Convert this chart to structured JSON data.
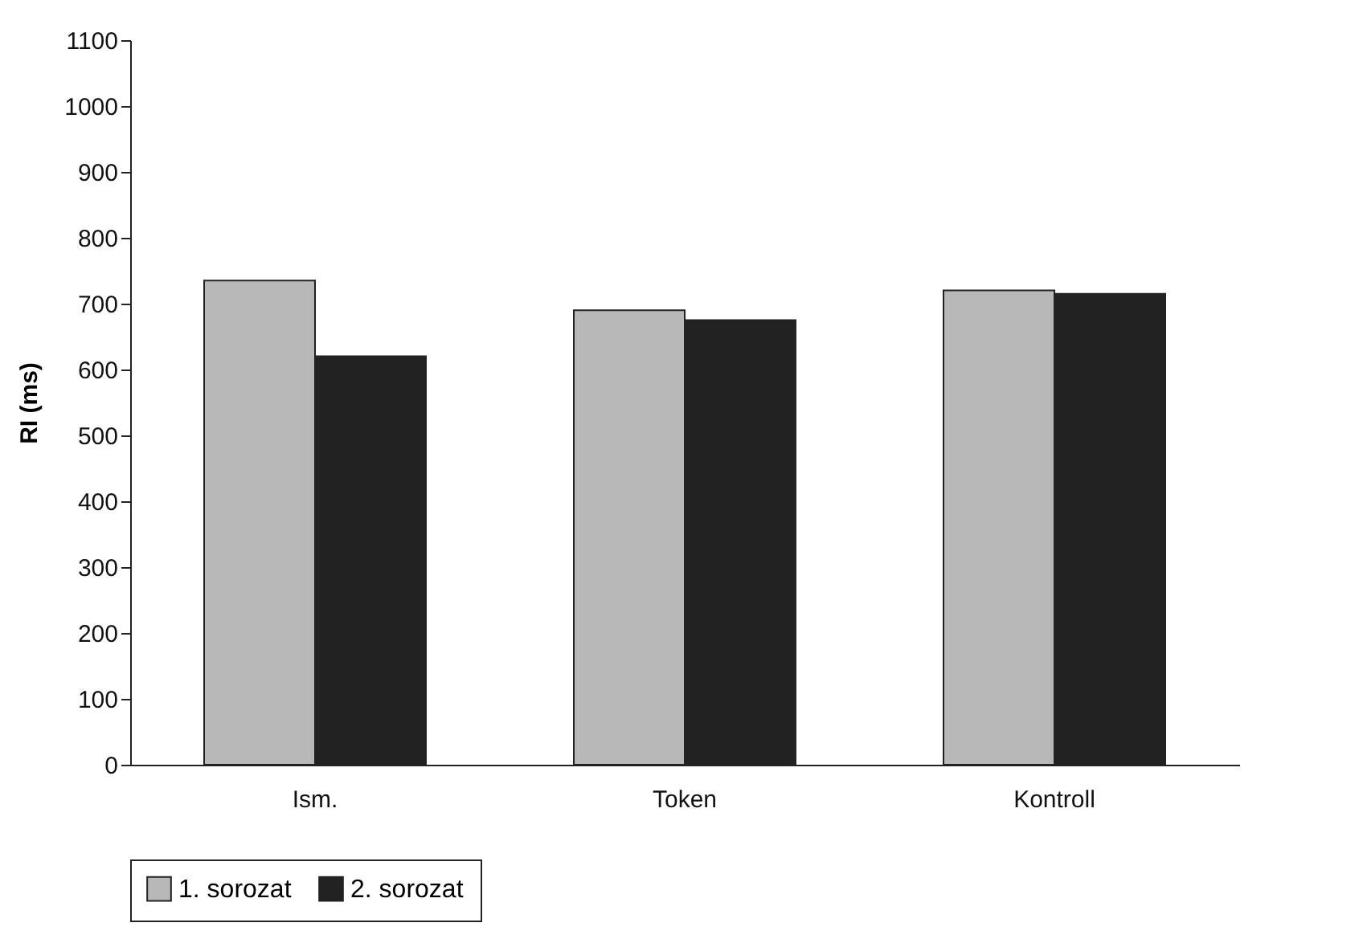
{
  "chart_data": {
    "type": "bar",
    "ylabel": "RI (ms)",
    "categories": [
      "Ism.",
      "Token",
      "Kontroll"
    ],
    "series": [
      {
        "name": "1. sorozat",
        "color": "#b8b8b8",
        "values": [
          735,
          690,
          720
        ]
      },
      {
        "name": "2. sorozat",
        "color": "#222222",
        "values": [
          620,
          675,
          715
        ]
      }
    ],
    "ylim": [
      0,
      1100
    ],
    "yticks": [
      0,
      100,
      200,
      300,
      400,
      500,
      600,
      700,
      800,
      900,
      1000,
      1100
    ],
    "grid": false,
    "legend": "bottom"
  }
}
